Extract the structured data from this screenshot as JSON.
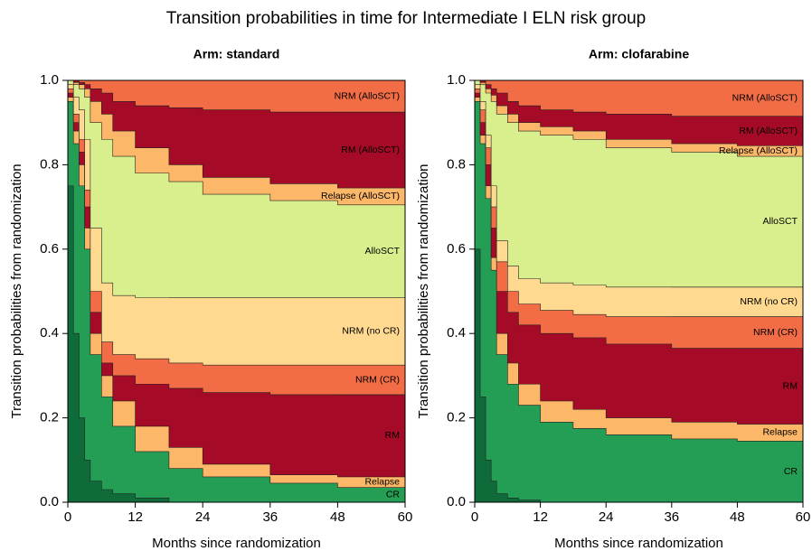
{
  "title": "Transition probabilities in time for Intermediate I ELN risk group",
  "chart_data": [
    {
      "type": "area",
      "stacked": true,
      "title": "Arm: standard",
      "x_label": "Months since randomization",
      "y_label": "Transition probabilities from randomization",
      "x": [
        0,
        1,
        2,
        3,
        4,
        6,
        8,
        12,
        18,
        24,
        36,
        48,
        60
      ],
      "xlim": [
        0,
        60
      ],
      "xticks": [
        0,
        12,
        24,
        36,
        48,
        60
      ],
      "ylim": [
        0,
        1
      ],
      "yticks": [
        {
          "value": 0,
          "label": "0.0"
        },
        0.2,
        0.4,
        0.6,
        0.8,
        {
          "value": 1,
          "label": "1.0"
        }
      ],
      "series": [
        {
          "name": null,
          "color": "#0f6b3a",
          "values": [
            1,
            0.75,
            0.4,
            0.2,
            0.1,
            0.05,
            0.03,
            0.02,
            0.01,
            0,
            0,
            0,
            0
          ]
        },
        {
          "name": "CR",
          "color": "#259e55",
          "values": [
            0,
            0.2,
            0.45,
            0.55,
            0.5,
            0.3,
            0.22,
            0.16,
            0.11,
            0.08,
            0.06,
            0.045,
            0.035
          ]
        },
        {
          "name": "Relapse",
          "color": "#fdb768",
          "values": [
            0,
            0.01,
            0.03,
            0.05,
            0.05,
            0.05,
            0.05,
            0.06,
            0.06,
            0.05,
            0.03,
            0.02,
            0.025
          ]
        },
        {
          "name": "RM",
          "color": "#a50a26",
          "values": [
            0,
            0.01,
            0.02,
            0.03,
            0.05,
            0.05,
            0.03,
            0.06,
            0.1,
            0.14,
            0.17,
            0.19,
            0.195
          ]
        },
        {
          "name": "NRM (CR)",
          "color": "#f26d46",
          "values": [
            0,
            0.01,
            0.02,
            0.03,
            0.04,
            0.05,
            0.05,
            0.05,
            0.06,
            0.06,
            0.065,
            0.07,
            0.07
          ]
        },
        {
          "name": "NRM (no CR)",
          "color": "#fed98f",
          "values": [
            0,
            0.01,
            0.04,
            0.07,
            0.12,
            0.15,
            0.14,
            0.14,
            0.145,
            0.155,
            0.16,
            0.16,
            0.16
          ]
        },
        {
          "name": "AlloSCT",
          "color": "#d9ee8c",
          "values": [
            0,
            0.01,
            0.03,
            0.05,
            0.1,
            0.25,
            0.34,
            0.33,
            0.295,
            0.275,
            0.245,
            0.23,
            0.22
          ]
        },
        {
          "name": "Relapse (AlloSCT)",
          "color": "#fdb768",
          "values": [
            0,
            0,
            0.005,
            0.01,
            0.02,
            0.05,
            0.06,
            0.06,
            0.06,
            0.04,
            0.04,
            0.04,
            0.04
          ]
        },
        {
          "name": "RM (AlloSCT)",
          "color": "#a50a26",
          "values": [
            0,
            0,
            0.005,
            0.005,
            0.01,
            0.03,
            0.05,
            0.07,
            0.1,
            0.135,
            0.16,
            0.17,
            0.18
          ]
        },
        {
          "name": "NRM (AlloSCT)",
          "color": "#f26d46",
          "values": [
            0,
            0,
            0,
            0.005,
            0.01,
            0.02,
            0.03,
            0.05,
            0.06,
            0.065,
            0.07,
            0.075,
            0.075
          ]
        }
      ]
    },
    {
      "type": "area",
      "stacked": true,
      "title": "Arm: clofarabine",
      "x_label": "Months since randomization",
      "y_label": "Transition probabilities from randomization",
      "x": [
        0,
        1,
        2,
        3,
        4,
        6,
        8,
        12,
        18,
        24,
        36,
        48,
        60
      ],
      "xlim": [
        0,
        60
      ],
      "xticks": [
        0,
        12,
        24,
        36,
        48,
        60
      ],
      "ylim": [
        0,
        1
      ],
      "yticks": [
        {
          "value": 0,
          "label": "0.0"
        },
        0.2,
        0.4,
        0.6,
        0.8,
        {
          "value": 1,
          "label": "1.0"
        }
      ],
      "series": [
        {
          "name": null,
          "color": "#0f6b3a",
          "values": [
            1,
            0.6,
            0.25,
            0.1,
            0.05,
            0.02,
            0.01,
            0.005,
            0,
            0,
            0,
            0,
            0
          ]
        },
        {
          "name": "CR",
          "color": "#259e55",
          "values": [
            0,
            0.35,
            0.6,
            0.62,
            0.5,
            0.33,
            0.27,
            0.225,
            0.19,
            0.175,
            0.16,
            0.15,
            0.145
          ]
        },
        {
          "name": "Relapse",
          "color": "#fdb768",
          "values": [
            0,
            0.01,
            0.02,
            0.03,
            0.03,
            0.05,
            0.05,
            0.05,
            0.05,
            0.045,
            0.04,
            0.04,
            0.04
          ]
        },
        {
          "name": "RM",
          "color": "#a50a26",
          "values": [
            0,
            0.01,
            0.03,
            0.05,
            0.07,
            0.1,
            0.12,
            0.14,
            0.16,
            0.17,
            0.175,
            0.175,
            0.18
          ]
        },
        {
          "name": "NRM (CR)",
          "color": "#f26d46",
          "values": [
            0,
            0.01,
            0.03,
            0.04,
            0.05,
            0.07,
            0.05,
            0.05,
            0.055,
            0.055,
            0.065,
            0.075,
            0.075
          ]
        },
        {
          "name": "NRM (no CR)",
          "color": "#fed98f",
          "values": [
            0,
            0.01,
            0.02,
            0.03,
            0.05,
            0.05,
            0.06,
            0.06,
            0.065,
            0.07,
            0.07,
            0.07,
            0.07
          ]
        },
        {
          "name": "AlloSCT",
          "color": "#d9ee8c",
          "values": [
            0,
            0.01,
            0.04,
            0.1,
            0.2,
            0.3,
            0.34,
            0.35,
            0.35,
            0.345,
            0.33,
            0.32,
            0.31
          ]
        },
        {
          "name": "Relapse (AlloSCT)",
          "color": "#fdb768",
          "values": [
            0,
            0,
            0.005,
            0.01,
            0.015,
            0.02,
            0.02,
            0.02,
            0.02,
            0.02,
            0.02,
            0.02,
            0.025
          ]
        },
        {
          "name": "RM (AlloSCT)",
          "color": "#a50a26",
          "values": [
            0,
            0,
            0.005,
            0.01,
            0.015,
            0.03,
            0.03,
            0.04,
            0.04,
            0.045,
            0.06,
            0.065,
            0.07
          ]
        },
        {
          "name": "NRM (AlloSCT)",
          "color": "#f26d46",
          "values": [
            0,
            0,
            0,
            0.01,
            0.02,
            0.03,
            0.05,
            0.06,
            0.07,
            0.075,
            0.08,
            0.085,
            0.085
          ]
        }
      ]
    }
  ]
}
